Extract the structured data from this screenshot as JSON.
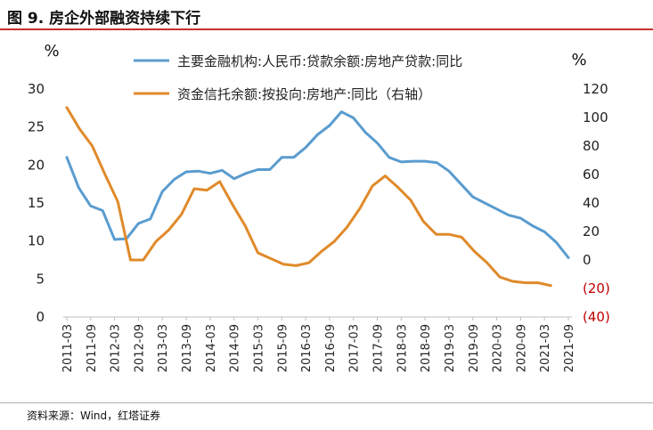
{
  "title": "图 9. 房企外部融资持续下行",
  "source": "资料来源：Wind，红塔证券",
  "chart_data": {
    "type": "line",
    "left_axis_label": "%",
    "right_axis_label": "%",
    "left_ylim": [
      0,
      30
    ],
    "right_ylim": [
      -40,
      120
    ],
    "left_ticks": [
      "0",
      "5",
      "10",
      "15",
      "20",
      "25",
      "30"
    ],
    "right_ticks": [
      "(40)",
      "(20)",
      "0",
      "20",
      "40",
      "60",
      "80",
      "100",
      "120"
    ],
    "negative_tick_color": "#c00000",
    "x_tick_labels": [
      "2011-03",
      "2011-09",
      "2012-03",
      "2012-09",
      "2013-03",
      "2013-09",
      "2014-03",
      "2014-09",
      "2015-03",
      "2015-09",
      "2016-03",
      "2016-09",
      "2017-03",
      "2017-09",
      "2018-03",
      "2018-09",
      "2019-03",
      "2019-09",
      "2020-03",
      "2020-09",
      "2021-03",
      "2021-09"
    ],
    "grid": false,
    "legend_position": "top-center",
    "series": [
      {
        "name": "主要金融机构:人民币:贷款余额:房地产贷款:同比",
        "axis": "left",
        "color": "#5a9ccf",
        "values": [
          21.0,
          17.0,
          14.6,
          14.0,
          10.2,
          10.3,
          12.3,
          12.9,
          16.5,
          18.1,
          19.1,
          19.2,
          18.9,
          19.3,
          18.2,
          18.9,
          19.4,
          19.4,
          21.0,
          21.0,
          22.3,
          24.0,
          25.2,
          27.0,
          26.2,
          24.3,
          22.9,
          21.0,
          20.4,
          20.5,
          20.5,
          20.3,
          19.2,
          17.5,
          15.8,
          15.0,
          14.2,
          13.4,
          13.0,
          12.0,
          11.2,
          9.8,
          7.8
        ]
      },
      {
        "name": "资金信托余额:按投向:房地产:同比（右轴）",
        "axis": "right",
        "color": "#e08a2a",
        "values": [
          107,
          92,
          80,
          60,
          41,
          0,
          0,
          13,
          21,
          32,
          50,
          49,
          55,
          39,
          24,
          5,
          1,
          -3,
          -4,
          -2,
          6,
          13,
          23,
          36,
          52,
          59,
          51,
          42,
          27,
          18,
          18,
          16,
          6,
          -2,
          -12,
          -15,
          -16,
          -16,
          -18
        ]
      }
    ]
  }
}
